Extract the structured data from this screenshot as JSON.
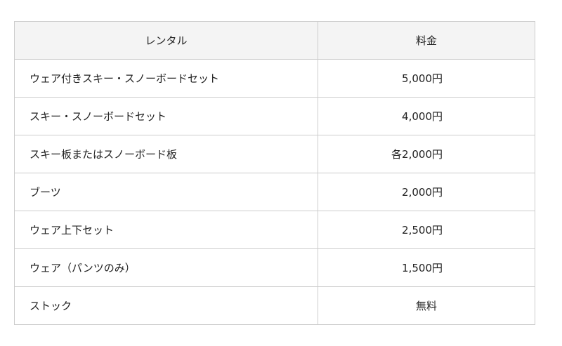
{
  "table": {
    "headers": [
      "レンタル",
      "料金"
    ],
    "rows": [
      {
        "item": "ウェア付きスキー・スノーボードセット",
        "price": "5,000円"
      },
      {
        "item": "スキー・スノーボードセット",
        "price": "4,000円"
      },
      {
        "item": "スキー板またはスノーボード板",
        "price": "各2,000円"
      },
      {
        "item": "ブーツ",
        "price": "2,000円"
      },
      {
        "item": "ウェア上下セット",
        "price": "2,500円"
      },
      {
        "item": "ウェア（パンツのみ）",
        "price": "1,500円"
      },
      {
        "item": "ストック",
        "price": "無料"
      }
    ]
  }
}
